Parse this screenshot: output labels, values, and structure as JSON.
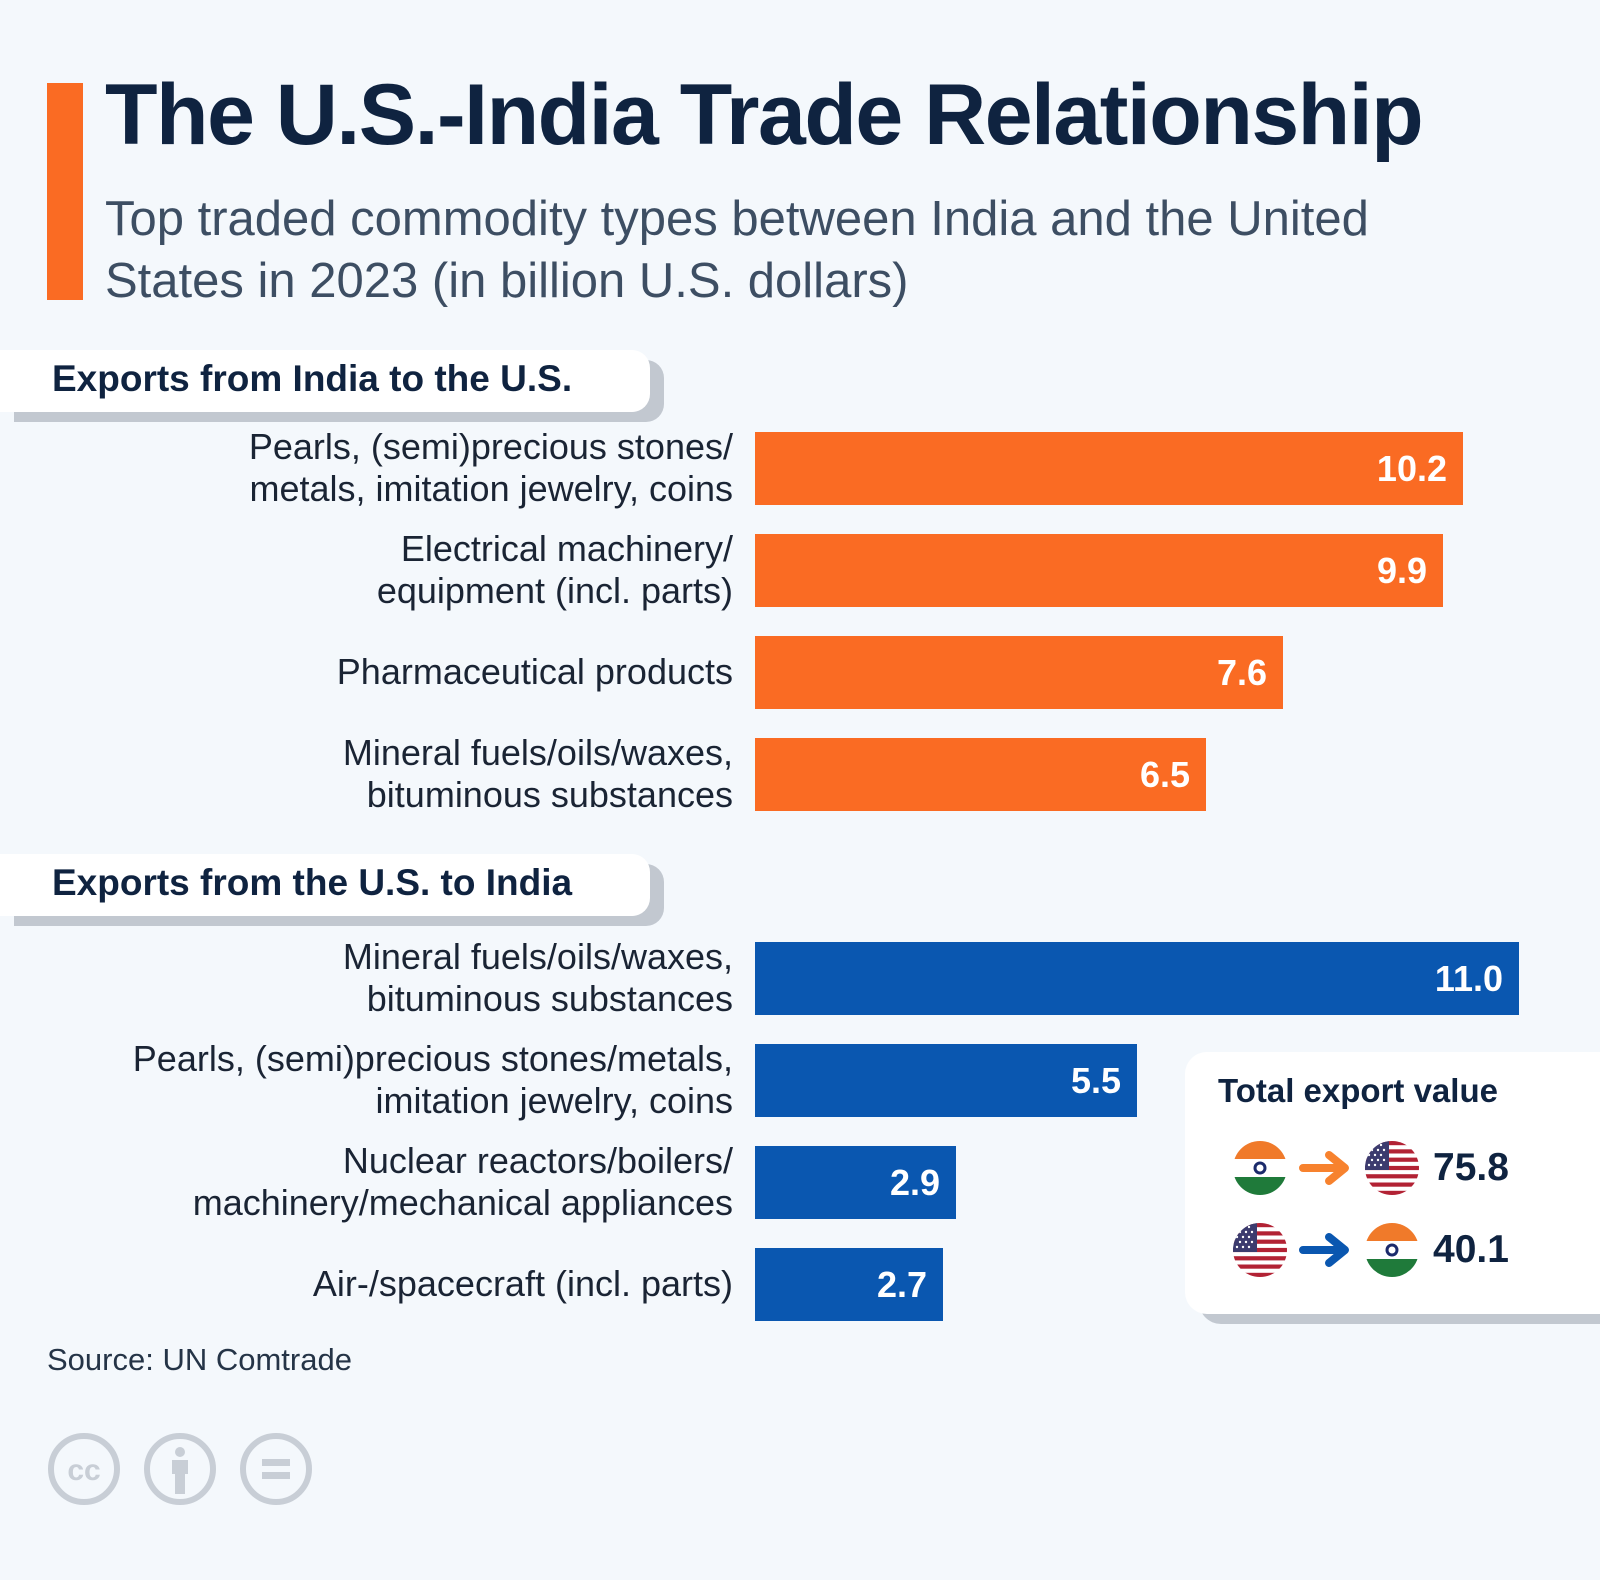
{
  "header": {
    "title": "The U.S.-India Trade Relationship",
    "subtitle": "Top traded commodity types between India and the United States in 2023 (in billion U.S. dollars)"
  },
  "colors": {
    "india_to_us": "#fa6b23",
    "us_to_india": "#0a57b0",
    "accent": "#fa6b23",
    "title": "#0f2340"
  },
  "chart_data": {
    "type": "bar",
    "orientation": "horizontal",
    "title": "The U.S.-India Trade Relationship",
    "subtitle": "Top traded commodity types between India and the United States in 2023 (in billion U.S. dollars)",
    "unit": "billion U.S. dollars",
    "xlim": [
      0,
      11.0
    ],
    "grid": false,
    "legend": "none",
    "series": [
      {
        "name": "Exports from India to the U.S.",
        "color": "#fa6b23",
        "categories": [
          "Pearls, (semi)precious stones/ metals, imitation jewelry, coins",
          "Electrical machinery/ equipment (incl. parts)",
          "Pharmaceutical products",
          "Mineral fuels/oils/waxes, bituminous substances"
        ],
        "labels": [
          [
            "Pearls, (semi)precious stones/",
            "metals, imitation jewelry, coins"
          ],
          [
            "Electrical machinery/",
            "equipment (incl. parts)"
          ],
          [
            "Pharmaceutical products"
          ],
          [
            "Mineral fuels/oils/waxes,",
            "bituminous substances"
          ]
        ],
        "values": [
          10.2,
          9.9,
          7.6,
          6.5
        ],
        "value_labels": [
          "10.2",
          "9.9",
          "7.6",
          "6.5"
        ]
      },
      {
        "name": "Exports from the U.S. to India",
        "color": "#0a57b0",
        "categories": [
          "Mineral fuels/oils/waxes, bituminous substances",
          "Pearls, (semi)precious stones/metals, imitation jewelry, coins",
          "Nuclear reactors/boilers/ machinery/mechanical appliances",
          "Air-/spacecraft (incl. parts)"
        ],
        "labels": [
          [
            "Mineral fuels/oils/waxes,",
            "bituminous substances"
          ],
          [
            "Pearls, (semi)precious stones/metals,",
            "imitation jewelry, coins"
          ],
          [
            "Nuclear reactors/boilers/",
            "machinery/mechanical appliances"
          ],
          [
            "Air-/spacecraft (incl. parts)"
          ]
        ],
        "values": [
          11.0,
          5.5,
          2.9,
          2.7
        ],
        "value_labels": [
          "11.0",
          "5.5",
          "2.9",
          "2.7"
        ]
      }
    ],
    "annotations": [
      {
        "title": "Total export value",
        "rows": [
          {
            "from": "India",
            "to": "United States",
            "value": 75.8,
            "label": "75.8",
            "arrow_color": "#f7822e"
          },
          {
            "from": "United States",
            "to": "India",
            "value": 40.1,
            "label": "40.1",
            "arrow_color": "#0a57b0"
          }
        ]
      }
    ]
  },
  "sections": {
    "india_to_us": "Exports from India to the U.S.",
    "us_to_india": "Exports from the U.S. to India"
  },
  "totals": {
    "title": "Total export value",
    "india_to_us": "75.8",
    "us_to_india": "40.1"
  },
  "footer": {
    "source": "Source: UN Comtrade",
    "license_icons": [
      "cc-icon",
      "attribution-icon",
      "no-derivatives-icon"
    ]
  }
}
